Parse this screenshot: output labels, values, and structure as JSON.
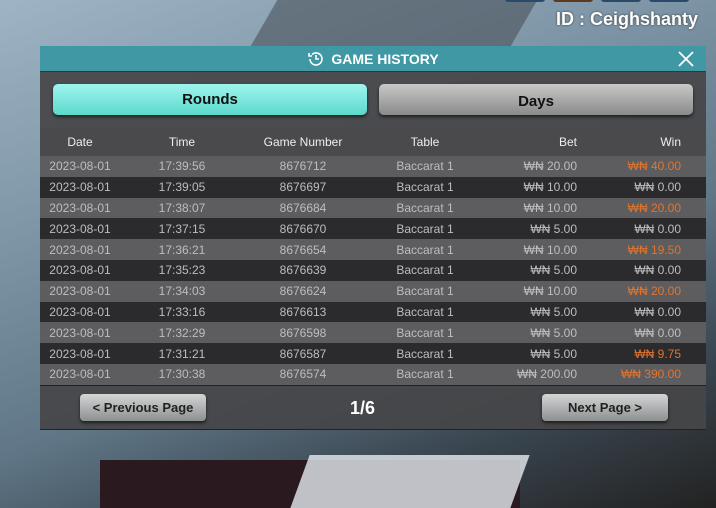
{
  "user_id": "ID : Ceighshanty",
  "dialog": {
    "title": "GAME HISTORY",
    "tabs": [
      {
        "label": "Rounds",
        "active": true
      },
      {
        "label": "Days",
        "active": false
      }
    ]
  },
  "table": {
    "headers": [
      "Date",
      "Time",
      "Game Number",
      "Table",
      "Bet",
      "Win"
    ],
    "rows": [
      [
        "2023-08-01",
        "17:39:56",
        "8676712",
        "Baccarat 1",
        "₩₦ 20.00",
        "₩₦ 40.00"
      ],
      [
        "2023-08-01",
        "17:39:05",
        "8676697",
        "Baccarat 1",
        "₩₦ 10.00",
        "₩₦ 0.00"
      ],
      [
        "2023-08-01",
        "17:38:07",
        "8676684",
        "Baccarat 1",
        "₩₦ 10.00",
        "₩₦ 20.00"
      ],
      [
        "2023-08-01",
        "17:37:15",
        "8676670",
        "Baccarat 1",
        "₩₦ 5.00",
        "₩₦ 0.00"
      ],
      [
        "2023-08-01",
        "17:36:21",
        "8676654",
        "Baccarat 1",
        "₩₦ 10.00",
        "₩₦ 19.50"
      ],
      [
        "2023-08-01",
        "17:35:23",
        "8676639",
        "Baccarat 1",
        "₩₦ 5.00",
        "₩₦ 0.00"
      ],
      [
        "2023-08-01",
        "17:34:03",
        "8676624",
        "Baccarat 1",
        "₩₦ 10.00",
        "₩₦ 20.00"
      ],
      [
        "2023-08-01",
        "17:33:16",
        "8676613",
        "Baccarat 1",
        "₩₦ 5.00",
        "₩₦ 0.00"
      ],
      [
        "2023-08-01",
        "17:32:29",
        "8676598",
        "Baccarat 1",
        "₩₦ 5.00",
        "₩₦ 0.00"
      ],
      [
        "2023-08-01",
        "17:31:21",
        "8676587",
        "Baccarat 1",
        "₩₦ 5.00",
        "₩₦ 9.75"
      ],
      [
        "2023-08-01",
        "17:30:38",
        "8676574",
        "Baccarat 1",
        "₩₦ 200.00",
        "₩₦ 390.00"
      ]
    ]
  },
  "pagination": {
    "prev_label": "< Previous Page",
    "next_label": "Next Page >",
    "page": "1/6"
  },
  "colors": {
    "header": "#3f98a4",
    "active_tab": "#5cd9cc",
    "win_highlight": "#e0742e"
  },
  "icons": {
    "title": "history-clock-icon",
    "close": "close-icon"
  }
}
